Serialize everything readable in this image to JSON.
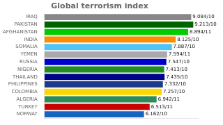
{
  "chart_data": {
    "type": "bar",
    "orientation": "horizontal",
    "title": "Global terrorism index",
    "categories": [
      "IRAQ",
      "PAKISTAN",
      "AFGHANISTAN",
      "INDIA",
      "SOMALIA",
      "YEMEN",
      "RUSSIA",
      "NIGERIA",
      "THAILAND",
      "PHILIPPINES",
      "COLOMBIA",
      "ALGERIA",
      "TURKEY",
      "NORWAY"
    ],
    "values": [
      9.084,
      9.213,
      8.894,
      8.125,
      7.887,
      7.594,
      7.547,
      7.413,
      7.435,
      7.332,
      7.257,
      6.942,
      6.513,
      6.162
    ],
    "value_labels": [
      "9.084/10",
      "9.213/10",
      "8.894/11",
      "8.125/10",
      "7.887/10",
      "7.594/11",
      "7.547/10",
      "7.413/10",
      "7.435/10",
      "7.332/10",
      "7.257/10",
      "6.942/11",
      "6.513/11",
      "6.162/10"
    ],
    "colors": [
      "#888888",
      "#006400",
      "#00cc00",
      "#ff8c00",
      "#4fc3f7",
      "#aaaaaa",
      "#0000cd",
      "#228b22",
      "#00008b",
      "#1e3a8a",
      "#ffd700",
      "#2e8b57",
      "#cc0000",
      "#1565c0"
    ],
    "xlim": [
      0,
      9.5
    ],
    "grid": false,
    "data_labels": true,
    "tick_labels": "y"
  }
}
